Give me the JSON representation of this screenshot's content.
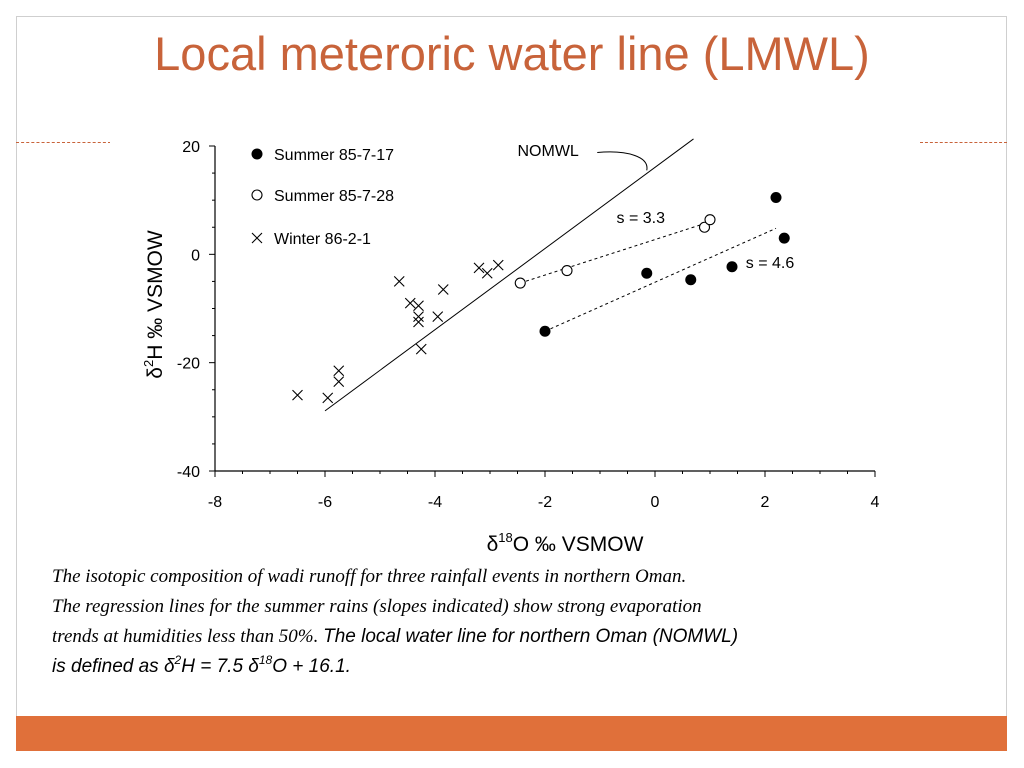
{
  "slide": {
    "title": "Local meteroric water line (LMWL)",
    "accent_color": "#c8633a",
    "bar_color": "#e0703a"
  },
  "caption": {
    "line1": "The isotopic composition of wadi runoff for three rainfall events in northern Oman.",
    "line2": "The regression lines for the summer rains (slopes indicated) show strong evaporation",
    "line3_serif": "trends at humidities less than 50%. ",
    "line3_sans": "The local water line for northern Oman (NOMWL)",
    "line4_a": "is defined as ",
    "delta": "δ",
    "sup2": "2",
    "line4_b": "H = 7.5 ",
    "sup18": "18",
    "line4_c": "O + 16.1."
  },
  "chart_data": {
    "type": "scatter",
    "xlabel": "δ18O ‰ VSMOW",
    "xlabel_parts": {
      "delta": "δ",
      "sup": "18",
      "rest": "O ‰ VSMOW"
    },
    "ylabel": "δ2H ‰ VSMOW",
    "ylabel_parts": {
      "delta": "δ",
      "sup": "2",
      "rest": "H ‰ VSMOW"
    },
    "xlim": [
      -8,
      4
    ],
    "ylim": [
      -40,
      20
    ],
    "xticks": [
      -8,
      -6,
      -4,
      -2,
      0,
      2,
      4
    ],
    "yticks": [
      -40,
      -20,
      0,
      20
    ],
    "grid": false,
    "legend_position": "top-left",
    "series": [
      {
        "name": "Summer 85-7-17",
        "marker": "filled-circle",
        "points": [
          [
            -2.0,
            -14.2
          ],
          [
            -0.15,
            -3.5
          ],
          [
            0.65,
            -4.7
          ],
          [
            1.4,
            -2.3
          ],
          [
            2.2,
            10.5
          ],
          [
            2.35,
            3.0
          ]
        ]
      },
      {
        "name": "Summer 85-7-28",
        "marker": "open-circle",
        "points": [
          [
            -2.45,
            -5.3
          ],
          [
            -1.6,
            -3.0
          ],
          [
            0.9,
            5.0
          ],
          [
            1.0,
            6.4
          ]
        ]
      },
      {
        "name": "Winter 86-2-1",
        "marker": "x",
        "points": [
          [
            -6.5,
            -26.0
          ],
          [
            -5.95,
            -26.5
          ],
          [
            -5.75,
            -23.5
          ],
          [
            -5.75,
            -21.5
          ],
          [
            -4.65,
            -5.0
          ],
          [
            -4.45,
            -9.0
          ],
          [
            -4.3,
            -9.5
          ],
          [
            -4.3,
            -11.5
          ],
          [
            -4.3,
            -12.5
          ],
          [
            -4.25,
            -17.5
          ],
          [
            -3.95,
            -11.5
          ],
          [
            -3.85,
            -6.5
          ],
          [
            -3.2,
            -2.5
          ],
          [
            -3.05,
            -3.5
          ],
          [
            -2.85,
            -2.0
          ]
        ]
      }
    ],
    "lines": [
      {
        "label": "NOMWL",
        "style": "solid",
        "from": [
          -6.0,
          -28.9
        ],
        "to": [
          0.7,
          21.3
        ]
      },
      {
        "label": "s = 3.3",
        "style": "dotted",
        "from": [
          -2.45,
          -5.3
        ],
        "to": [
          1.0,
          6.0
        ]
      },
      {
        "label": "s = 4.6",
        "style": "dotted",
        "from": [
          -2.0,
          -14.2
        ],
        "to": [
          2.2,
          4.8
        ]
      }
    ]
  }
}
